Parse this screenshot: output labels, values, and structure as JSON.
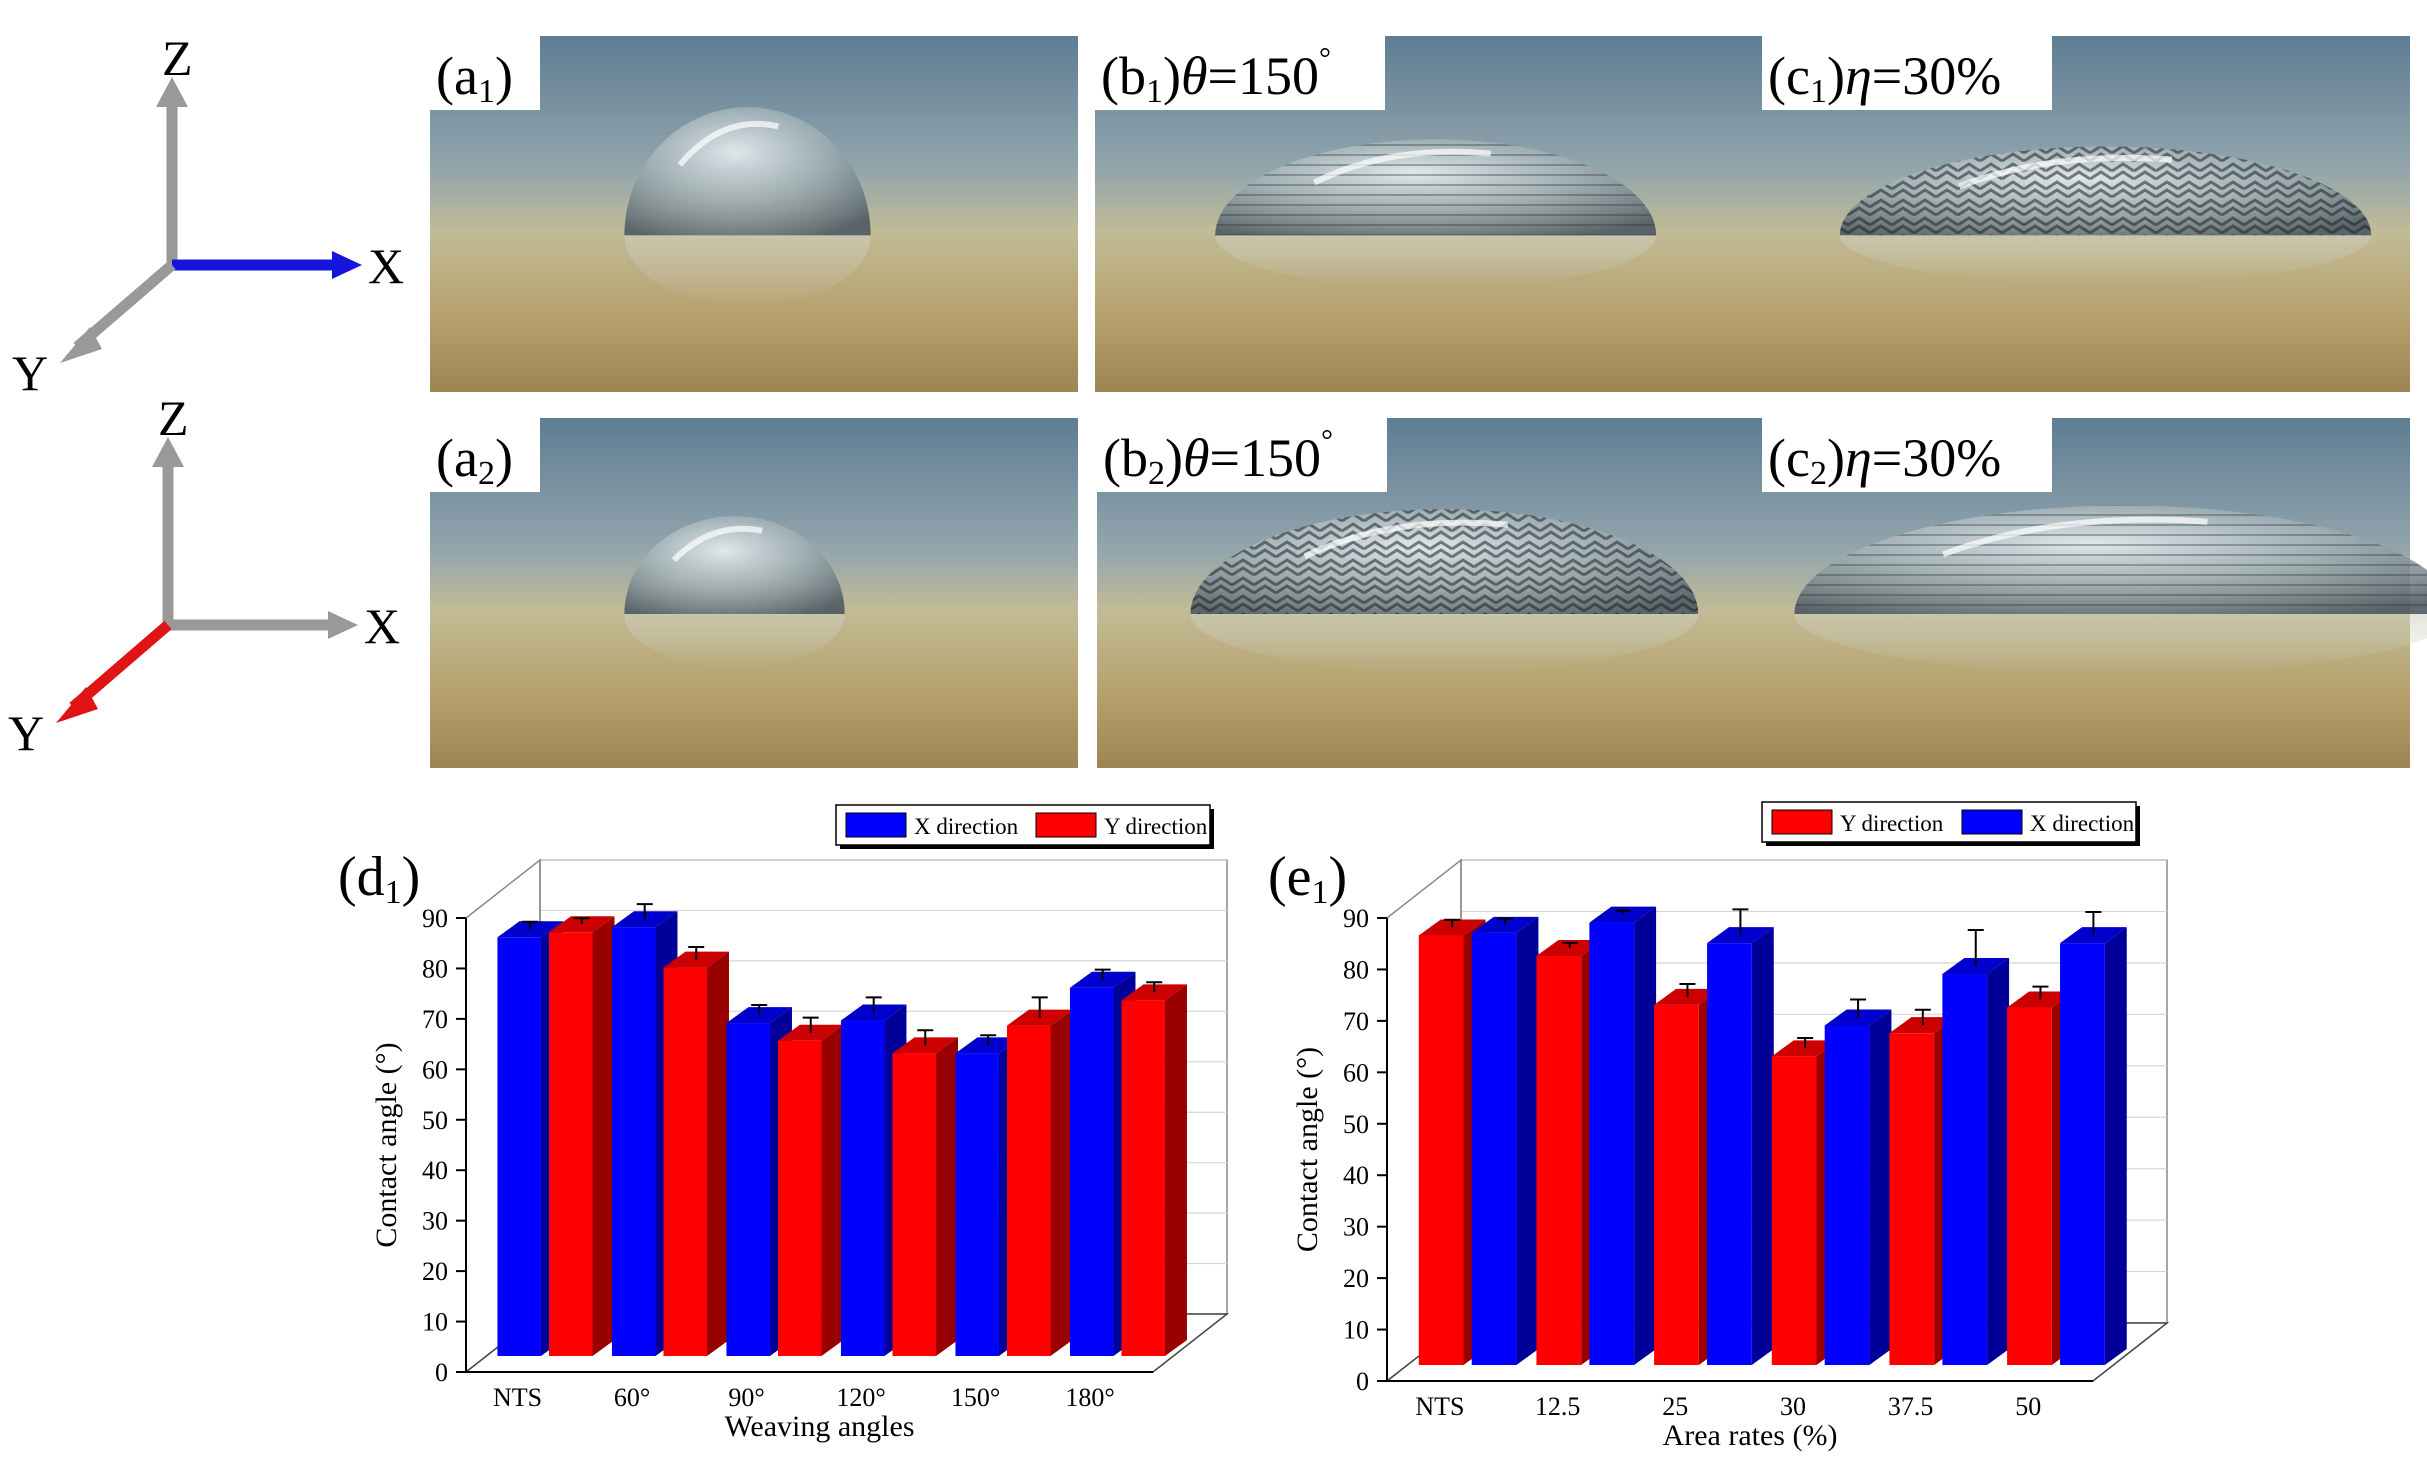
{
  "axes_diagrams": [
    {
      "z_label": "Z",
      "x_label": "X",
      "y_label": "Y",
      "highlight": "X",
      "highlight_color": "#1414dc"
    },
    {
      "z_label": "Z",
      "x_label": "X",
      "y_label": "Y",
      "highlight": "Y",
      "highlight_color": "#e01414"
    }
  ],
  "photos": [
    {
      "label_main": "(a",
      "label_sub": "1",
      "label_tail": ")",
      "symbol": "",
      "equals": ""
    },
    {
      "label_main": "(b",
      "label_sub": "1",
      "label_tail": ")",
      "symbol": "θ",
      "equals": "=150",
      "degree": "°"
    },
    {
      "label_main": "(c",
      "label_sub": "1",
      "label_tail": ")",
      "symbol": "η",
      "equals": "=30%",
      "degree": ""
    },
    {
      "label_main": "(a",
      "label_sub": "2",
      "label_tail": ")",
      "symbol": "",
      "equals": ""
    },
    {
      "label_main": "(b",
      "label_sub": "2",
      "label_tail": ")",
      "symbol": "θ",
      "equals": "=150",
      "degree": "°"
    },
    {
      "label_main": "(c",
      "label_sub": "2",
      "label_tail": ")",
      "symbol": "η",
      "equals": "=30%",
      "degree": ""
    }
  ],
  "chart_data": [
    {
      "type": "bar",
      "panel_main": "(d",
      "panel_sub": "1",
      "panel_tail": ")",
      "categories": [
        "NTS",
        "60°",
        "90°",
        "120°",
        "150°",
        "180°"
      ],
      "series": [
        {
          "name": "X direction",
          "color": "#0000ff",
          "values": [
            83,
            85,
            66,
            66.5,
            60,
            73
          ],
          "errors": [
            1.5,
            3,
            2,
            3,
            2,
            2
          ]
        },
        {
          "name": "Y direction",
          "color": "#ff0000",
          "values": [
            84,
            77,
            62.5,
            60,
            65.5,
            70.5
          ],
          "errors": [
            1.2,
            2.5,
            3,
            3,
            4,
            2
          ]
        }
      ],
      "xlabel": "Weaving angles",
      "ylabel": "Contact angle (°)",
      "ylim": [
        0,
        90
      ],
      "yticks": [
        0,
        10,
        20,
        30,
        40,
        50,
        60,
        70,
        80,
        90
      ],
      "legend_position": "top-right"
    },
    {
      "type": "bar",
      "panel_main": "(e",
      "panel_sub": "1",
      "panel_tail": ")",
      "categories": [
        "NTS",
        "12.5",
        "25",
        "30",
        "37.5",
        "50"
      ],
      "series": [
        {
          "name": "Y direction",
          "color": "#ff0000",
          "values": [
            83.5,
            79.5,
            70,
            60,
            64.5,
            69.5
          ],
          "errors": [
            1.5,
            1,
            2.5,
            2,
            3,
            2.5
          ]
        },
        {
          "name": "X direction",
          "color": "#0000ff",
          "values": [
            84,
            86,
            82,
            66,
            76,
            82
          ],
          "errors": [
            1.2,
            0.8,
            5,
            3.5,
            7,
            4.5
          ]
        }
      ],
      "xlabel": "Area rates (%)",
      "ylabel": "Contact angle (°)",
      "ylim": [
        0,
        90
      ],
      "yticks": [
        0,
        10,
        20,
        30,
        40,
        50,
        60,
        70,
        80,
        90
      ],
      "legend_position": "top-right"
    }
  ]
}
